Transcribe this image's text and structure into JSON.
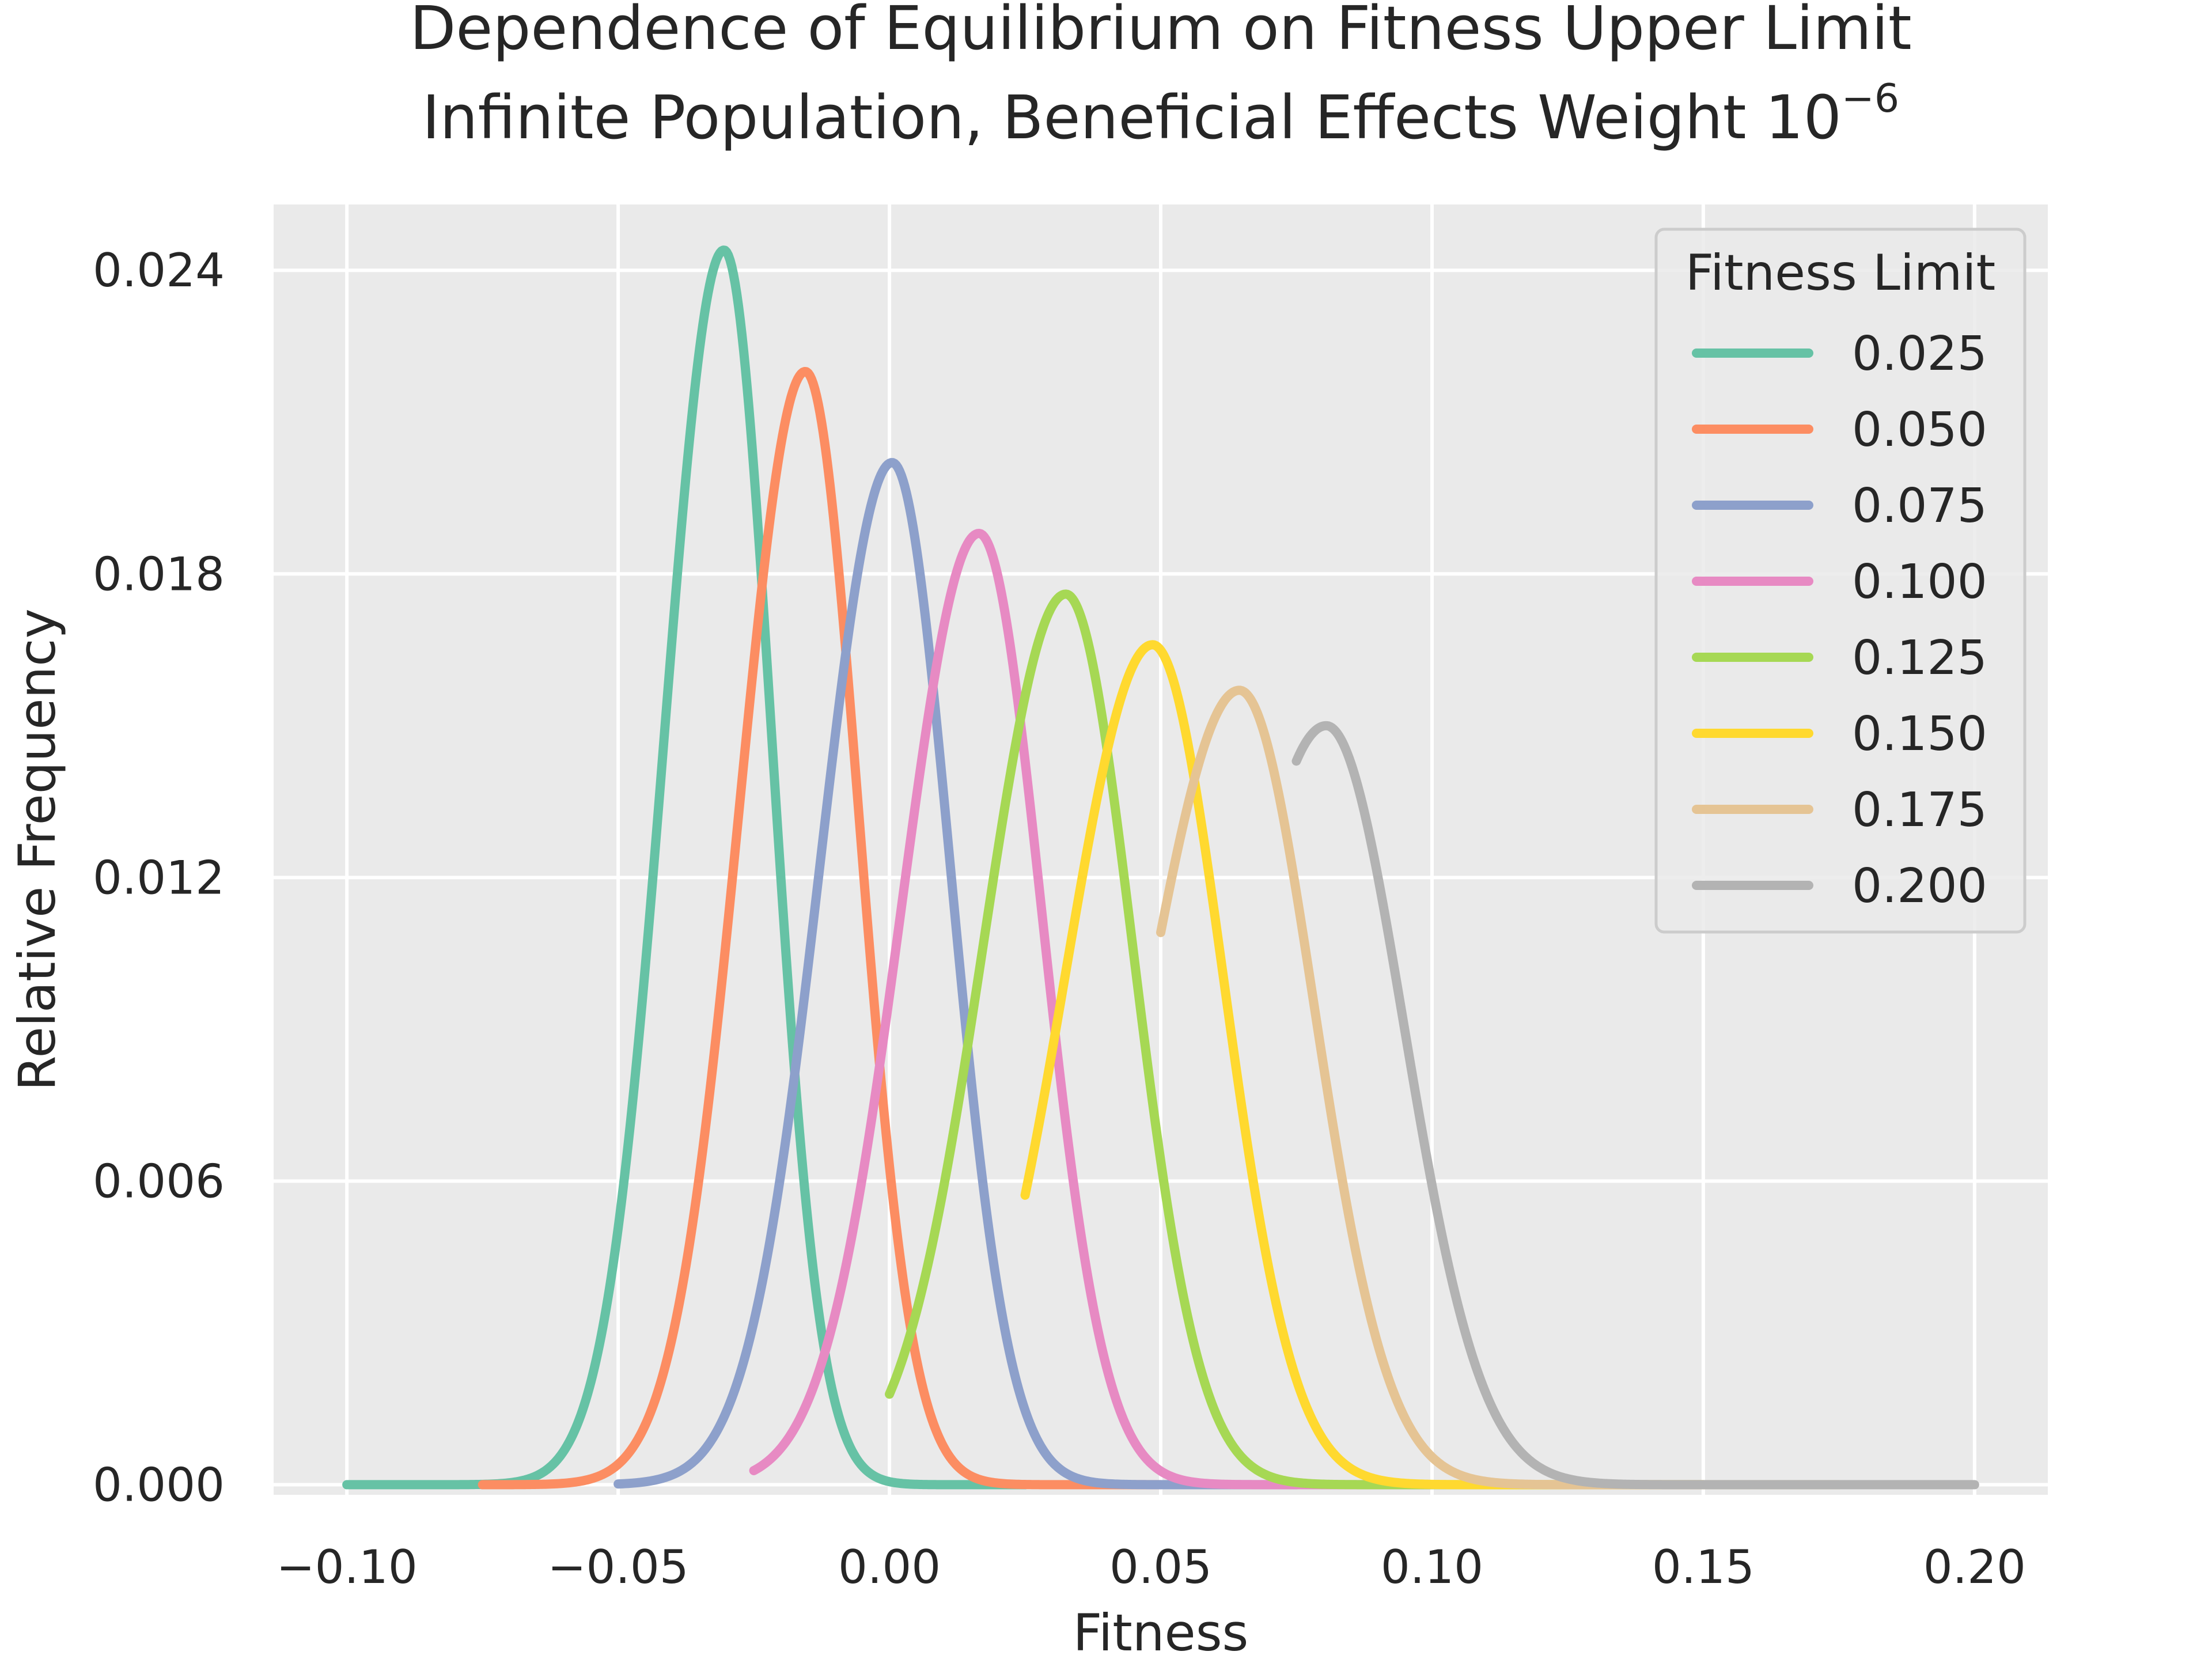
{
  "chart_data": {
    "type": "line",
    "title_line1": "Dependence of Equilibrium on Fitness Upper Limit",
    "title_line2_prefix": "Infinite Population, Beneficial Effects Weight 10",
    "title_line2_exponent": "−6",
    "xlabel": "Fitness",
    "ylabel": "Relative Frequency",
    "xlim": [
      -0.1135,
      0.2135
    ],
    "ylim": [
      -0.0002,
      0.0253
    ],
    "x_ticks": [
      -0.1,
      -0.05,
      0.0,
      0.05,
      0.1,
      0.15,
      0.2
    ],
    "x_tick_labels": [
      "−0.10",
      "−0.05",
      "0.00",
      "0.05",
      "0.10",
      "0.15",
      "0.20"
    ],
    "y_ticks": [
      0.0,
      0.006,
      0.012,
      0.018,
      0.024
    ],
    "y_tick_labels": [
      "0.000",
      "0.006",
      "0.012",
      "0.018",
      "0.024"
    ],
    "grid": true,
    "background_color": "#eaeaea",
    "grid_color": "#ffffff",
    "legend": {
      "title": "Fitness Limit",
      "placement": "top-right"
    },
    "series": [
      {
        "name": "0.025",
        "color": "#66c2a5",
        "x_min": -0.1,
        "x_max": 0.025,
        "peak_x": -0.0305,
        "peak_y": 0.0244,
        "left_sigma": 0.011,
        "right_sigma": 0.0088
      },
      {
        "name": "0.050",
        "color": "#fc8d62",
        "x_min": -0.075,
        "x_max": 0.05,
        "peak_x": -0.0155,
        "peak_y": 0.022,
        "left_sigma": 0.0122,
        "right_sigma": 0.0098
      },
      {
        "name": "0.075",
        "color": "#8da0cb",
        "x_min": -0.05,
        "x_max": 0.075,
        "peak_x": 0.0005,
        "peak_y": 0.0202,
        "left_sigma": 0.0133,
        "right_sigma": 0.0107
      },
      {
        "name": "0.100",
        "color": "#e78ac3",
        "x_min": -0.025,
        "x_max": 0.1,
        "peak_x": 0.0165,
        "peak_y": 0.0188,
        "left_sigma": 0.0143,
        "right_sigma": 0.0115
      },
      {
        "name": "0.125",
        "color": "#a6d854",
        "x_min": 0.0,
        "x_max": 0.125,
        "peak_x": 0.0325,
        "peak_y": 0.0176,
        "left_sigma": 0.0152,
        "right_sigma": 0.0123
      },
      {
        "name": "0.150",
        "color": "#ffd92f",
        "x_min": 0.025,
        "x_max": 0.15,
        "peak_x": 0.0485,
        "peak_y": 0.0166,
        "left_sigma": 0.0161,
        "right_sigma": 0.013
      },
      {
        "name": "0.175",
        "color": "#e5c494",
        "x_min": 0.05,
        "x_max": 0.175,
        "peak_x": 0.0645,
        "peak_y": 0.0157,
        "left_sigma": 0.017,
        "right_sigma": 0.0137
      },
      {
        "name": "0.200",
        "color": "#b3b3b3",
        "x_min": 0.075,
        "x_max": 0.2,
        "peak_x": 0.0805,
        "peak_y": 0.015,
        "left_sigma": 0.0178,
        "right_sigma": 0.0143
      }
    ]
  }
}
